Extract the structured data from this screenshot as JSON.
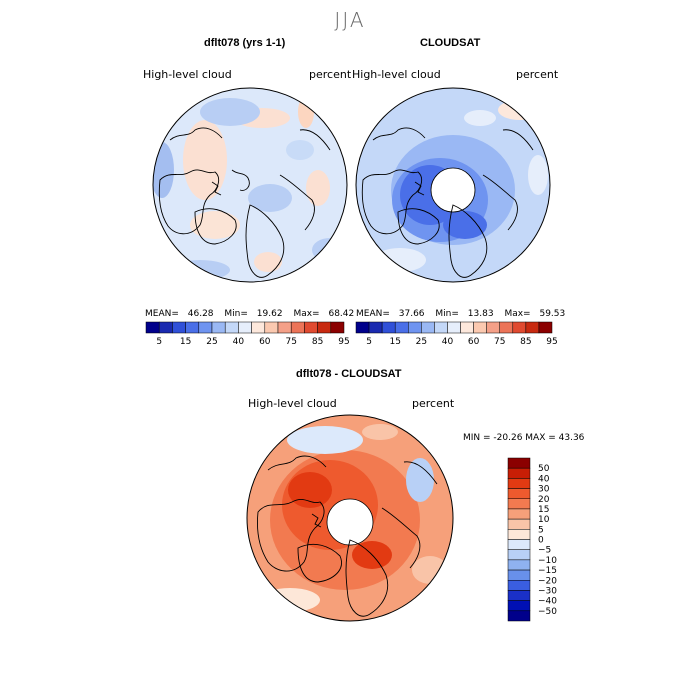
{
  "page": {
    "title": "JJA"
  },
  "panels": [
    {
      "title": "dflt078 (yrs 1-1)",
      "variable": "High-level cloud",
      "units": "percent",
      "stats": {
        "mean_label": "MEAN=",
        "mean": "46.28",
        "min_label": "Min=",
        "min": "19.62",
        "max_label": "Max=",
        "max": "68.42"
      }
    },
    {
      "title": "CLOUDSAT",
      "variable": "High-level cloud",
      "units": "percent",
      "stats": {
        "mean_label": "MEAN=",
        "mean": "37.66",
        "min_label": "Min=",
        "min": "13.83",
        "max_label": "Max=",
        "max": "59.53"
      }
    }
  ],
  "diff_panel": {
    "title": "dflt078 - CLOUDSAT",
    "variable": "High-level cloud",
    "units": "percent",
    "minmax": "MIN = -20.26  MAX =  43.36"
  },
  "chart_data": [
    {
      "type": "heatmap",
      "title": "dflt078 (yrs 1-1)",
      "projection": "north polar stereographic",
      "field": "High-level cloud",
      "units": "percent",
      "mean": 46.28,
      "min": 19.62,
      "max": 68.42,
      "colorbar_levels": [
        5,
        15,
        25,
        40,
        60,
        75,
        85,
        95
      ]
    },
    {
      "type": "heatmap",
      "title": "CLOUDSAT",
      "projection": "north polar stereographic",
      "field": "High-level cloud",
      "units": "percent",
      "mean": 37.66,
      "min": 13.83,
      "max": 59.53,
      "colorbar_levels": [
        5,
        15,
        25,
        40,
        60,
        75,
        85,
        95
      ]
    },
    {
      "type": "heatmap",
      "title": "dflt078 - CLOUDSAT",
      "projection": "north polar stereographic",
      "field": "High-level cloud",
      "units": "percent",
      "min": -20.26,
      "max": 43.36,
      "colorbar_levels": [
        50,
        40,
        30,
        20,
        15,
        10,
        5,
        0,
        -5,
        -10,
        -15,
        -20,
        -30,
        -40,
        -50
      ]
    }
  ],
  "colorbar_top": {
    "labels": [
      "5",
      "15",
      "25",
      "40",
      "60",
      "75",
      "85",
      "95"
    ],
    "colors": [
      "#00008b",
      "#1a2ab0",
      "#3050d8",
      "#4a6fe8",
      "#6f94f0",
      "#9ab8f4",
      "#c4d8f8",
      "#e6eefb",
      "#fde8dc",
      "#fbc9b0",
      "#f4a088",
      "#ec7458",
      "#e04a30",
      "#c82a10",
      "#8b0000"
    ]
  },
  "colorbar_diff": {
    "labels": [
      "50",
      "40",
      "30",
      "20",
      "15",
      "10",
      "5",
      "0",
      "-5",
      "-10",
      "-15",
      "-20",
      "-30",
      "-40",
      "-50"
    ],
    "colors": [
      "#8b0000",
      "#c81e05",
      "#e23a12",
      "#ee5a2e",
      "#f27a50",
      "#f6a07a",
      "#f9c4a8",
      "#fde7d8",
      "#dce9fb",
      "#b8d0f6",
      "#8fb2f0",
      "#6890ea",
      "#3a5ee0",
      "#1a30c8",
      "#0010b4",
      "#00008b"
    ]
  }
}
